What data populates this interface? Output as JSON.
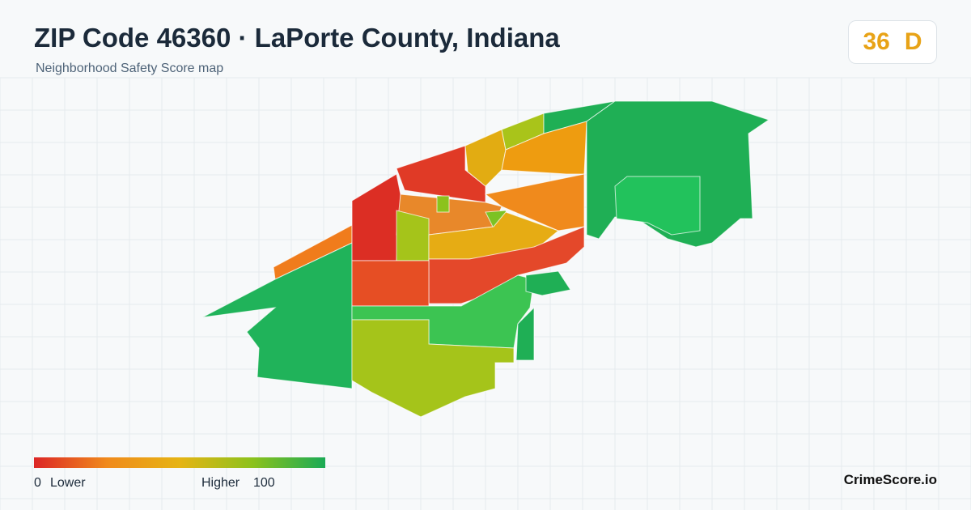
{
  "header": {
    "title": "ZIP Code 46360 · LaPorte County, Indiana",
    "subtitle": "Neighborhood Safety Score map"
  },
  "score": {
    "value": 36,
    "grade": "D"
  },
  "legend": {
    "min": 0,
    "min_label": "Lower",
    "max_label": "Higher",
    "max": 100
  },
  "brand": "CrimeScore.io"
}
